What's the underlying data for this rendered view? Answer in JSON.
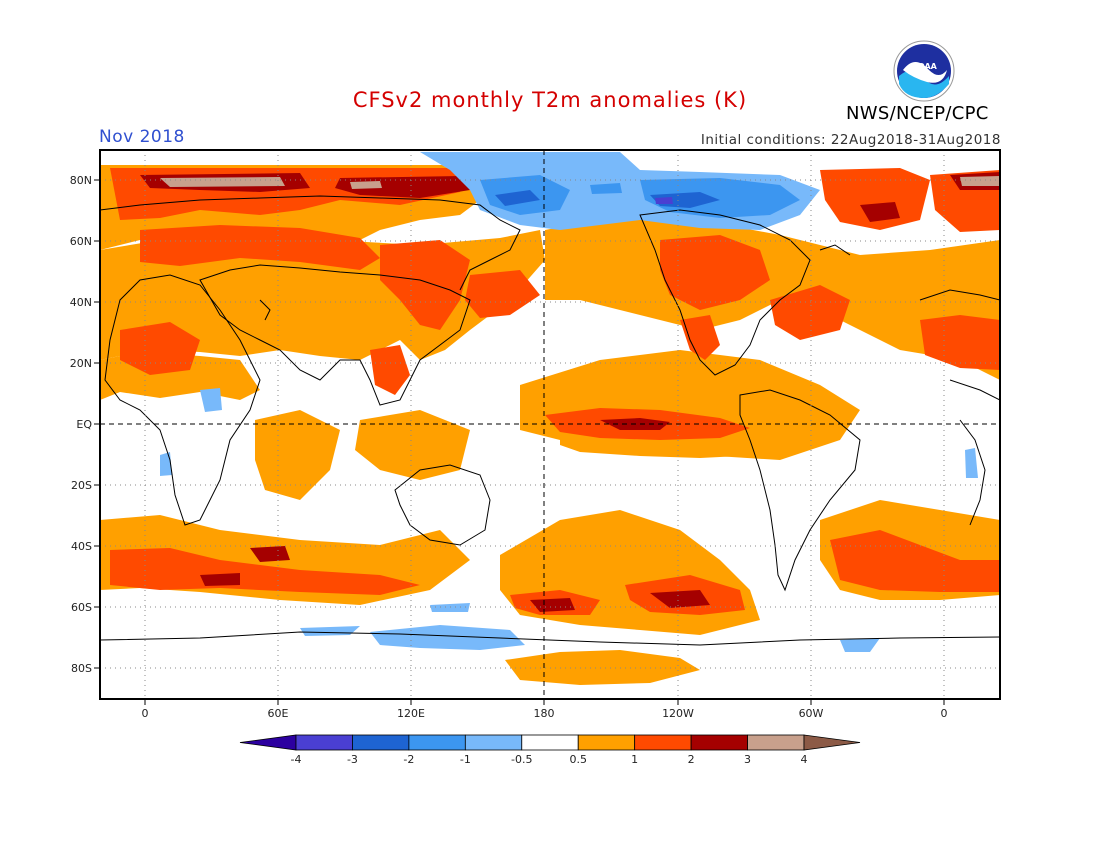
{
  "title": "CFSv2 monthly T2m anomalies (K)",
  "month": "Nov 2018",
  "initial_conditions": "Initial conditions: 22Aug2018-31Aug2018",
  "agency": "NWS/NCEP/CPC",
  "logo_text": "NOAA",
  "lat_labels": [
    "80N",
    "60N",
    "40N",
    "20N",
    "EQ",
    "20S",
    "40S",
    "60S",
    "80S"
  ],
  "lon_labels": [
    "0",
    "60E",
    "120E",
    "180",
    "120W",
    "60W",
    "0"
  ],
  "colorbar": {
    "labels": [
      "-4",
      "-3",
      "-2",
      "-1",
      "-0.5",
      "0.5",
      "1",
      "2",
      "3",
      "4"
    ],
    "colors": [
      "#2c00a0",
      "#4a3fd2",
      "#1e64d2",
      "#3c96f0",
      "#78b9fa",
      "#ffffff",
      "#ffa000",
      "#ff4a00",
      "#a50000",
      "#c8a08c",
      "#8c5a46"
    ]
  },
  "palette": {
    "warm1": "#ffa000",
    "warm2": "#ff4a00",
    "warm3": "#a50000",
    "warm4": "#c8a08c",
    "cool1": "#78b9fa",
    "cool2": "#3c96f0",
    "cool3": "#1e64d2",
    "cool4": "#4a3fd2"
  }
}
